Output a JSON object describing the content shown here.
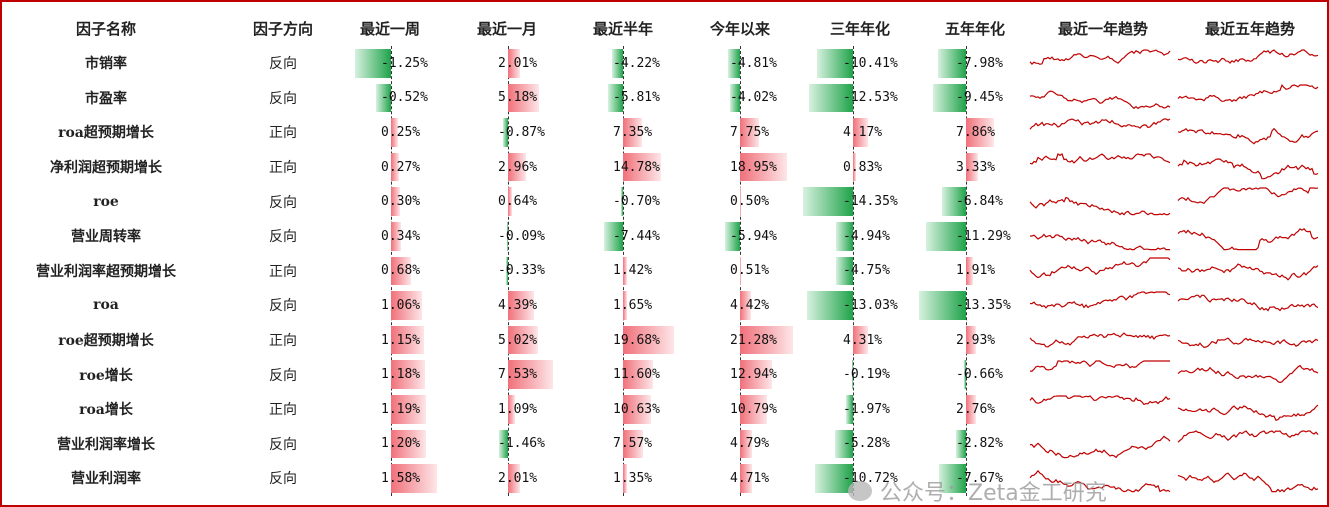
{
  "headers": [
    "因子名称",
    "因子方向",
    "最近一周",
    "最近一月",
    "最近半年",
    "今年以来",
    "三年年化",
    "五年年化",
    "最近一年趋势",
    "最近五年趋势"
  ],
  "rows": [
    {
      "name": "市销率",
      "direction": "反向",
      "values": [
        "-1.25%",
        "2.01%",
        "-4.22%",
        "-4.81%",
        "-10.41%",
        "-7.98%"
      ]
    },
    {
      "name": "市盈率",
      "direction": "反向",
      "values": [
        "-0.52%",
        "5.18%",
        "-5.81%",
        "-4.02%",
        "-12.53%",
        "-9.45%"
      ]
    },
    {
      "name": "roa超预期增长",
      "direction": "正向",
      "values": [
        "0.25%",
        "-0.87%",
        "7.35%",
        "7.75%",
        "4.17%",
        "7.86%"
      ]
    },
    {
      "name": "净利润超预期增长",
      "direction": "正向",
      "values": [
        "0.27%",
        "2.96%",
        "14.78%",
        "18.95%",
        "0.83%",
        "3.33%"
      ]
    },
    {
      "name": "roe",
      "direction": "反向",
      "values": [
        "0.30%",
        "0.64%",
        "-0.70%",
        "0.50%",
        "-14.35%",
        "-6.84%"
      ]
    },
    {
      "name": "营业周转率",
      "direction": "反向",
      "values": [
        "0.34%",
        "-0.09%",
        "-7.44%",
        "-5.94%",
        "-4.94%",
        "-11.29%"
      ]
    },
    {
      "name": "营业利润率超预期增长",
      "direction": "正向",
      "values": [
        "0.68%",
        "-0.33%",
        "1.42%",
        "0.51%",
        "-4.75%",
        "1.91%"
      ]
    },
    {
      "name": "roa",
      "direction": "反向",
      "values": [
        "1.06%",
        "4.39%",
        "1.65%",
        "4.42%",
        "-13.03%",
        "-13.35%"
      ]
    },
    {
      "name": "roe超预期增长",
      "direction": "正向",
      "values": [
        "1.15%",
        "5.02%",
        "19.68%",
        "21.28%",
        "4.31%",
        "2.93%"
      ]
    },
    {
      "name": "roe增长",
      "direction": "反向",
      "values": [
        "1.18%",
        "7.53%",
        "11.60%",
        "12.94%",
        "-0.19%",
        "-0.66%"
      ]
    },
    {
      "name": "roa增长",
      "direction": "正向",
      "values": [
        "1.19%",
        "1.09%",
        "10.63%",
        "10.79%",
        "-1.97%",
        "2.76%"
      ]
    },
    {
      "name": "营业利润率增长",
      "direction": "反向",
      "values": [
        "1.20%",
        "-1.46%",
        "7.57%",
        "4.79%",
        "-5.28%",
        "-2.82%"
      ]
    },
    {
      "name": "营业利润率",
      "direction": "反向",
      "values": [
        "1.58%",
        "2.01%",
        "1.35%",
        "4.71%",
        "-10.72%",
        "-7.67%"
      ]
    }
  ],
  "colors": {
    "positive": "#f0707a",
    "negative": "#1fa34a",
    "trend_line": "#c00000",
    "frame": "#c00000"
  },
  "watermark": "公众号：Zeta金工研究"
}
